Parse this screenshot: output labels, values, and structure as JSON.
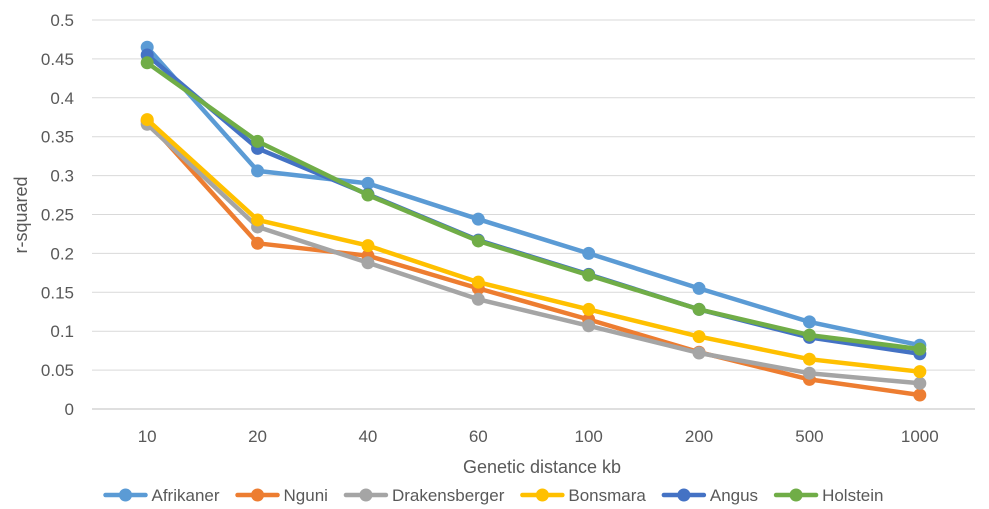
{
  "chart_data": {
    "type": "line",
    "title": "",
    "xlabel": "Genetic distance kb",
    "ylabel": "r-squared",
    "categories": [
      "10",
      "20",
      "40",
      "60",
      "100",
      "200",
      "500",
      "1000"
    ],
    "ylim": [
      0,
      0.5
    ],
    "yticks": [
      "0",
      "0.05",
      "0.1",
      "0.15",
      "0.2",
      "0.25",
      "0.3",
      "0.35",
      "0.4",
      "0.45",
      "0.5"
    ],
    "grid": true,
    "legend_position": "bottom",
    "series": [
      {
        "name": "Afrikaner",
        "color": "#5B9BD5",
        "values": [
          0.465,
          0.306,
          0.29,
          0.244,
          0.2,
          0.155,
          0.112,
          0.082
        ]
      },
      {
        "name": "Nguni",
        "color": "#ED7D31",
        "values": [
          0.37,
          0.213,
          0.197,
          0.155,
          0.115,
          0.073,
          0.038,
          0.018
        ]
      },
      {
        "name": "Drakensberger",
        "color": "#A5A5A5",
        "values": [
          0.366,
          0.234,
          0.188,
          0.141,
          0.107,
          0.072,
          0.046,
          0.033
        ]
      },
      {
        "name": "Bonsmara",
        "color": "#FFC000",
        "values": [
          0.372,
          0.243,
          0.21,
          0.163,
          0.128,
          0.093,
          0.064,
          0.048
        ]
      },
      {
        "name": "Angus",
        "color": "#4472C4",
        "values": [
          0.455,
          0.335,
          0.276,
          0.217,
          0.173,
          0.128,
          0.092,
          0.071
        ]
      },
      {
        "name": "Holstein",
        "color": "#70AD47",
        "values": [
          0.445,
          0.344,
          0.275,
          0.216,
          0.172,
          0.128,
          0.095,
          0.077
        ]
      }
    ]
  }
}
